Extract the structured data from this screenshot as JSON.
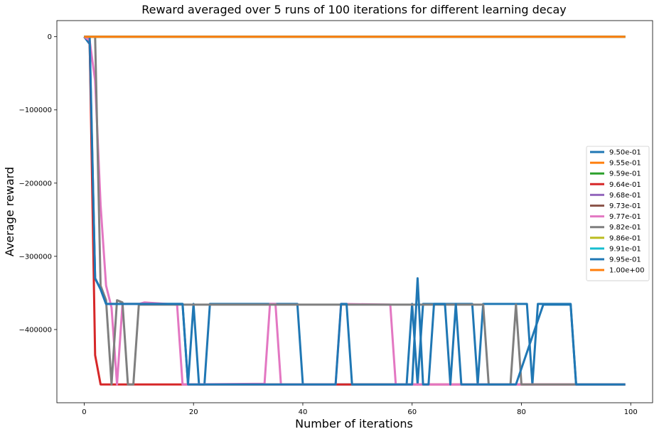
{
  "chart_data": {
    "type": "line",
    "title": "Reward averaged over 5 runs of 100 iterations for different learning decay",
    "xlabel": "Number of iterations",
    "ylabel": "Average reward",
    "xlim": [
      -5,
      104
    ],
    "ylim": [
      -500000,
      22000
    ],
    "xticks": [
      0,
      20,
      40,
      60,
      80,
      100
    ],
    "xtick_labels": [
      "0",
      "20",
      "40",
      "60",
      "80",
      "100"
    ],
    "yticks": [
      0,
      -100000,
      -200000,
      -300000,
      -400000
    ],
    "ytick_labels": [
      "0",
      "−100000",
      "−200000",
      "−300000",
      "−400000"
    ],
    "grid": false,
    "legend_position": "center-right",
    "series": [
      {
        "name": "9.50e-01",
        "color": "#1f77b4",
        "segments": [
          [
            0,
            0
          ],
          [
            1,
            -10000
          ],
          [
            2,
            -330000
          ],
          [
            3,
            -345000
          ],
          [
            4,
            -365000
          ],
          [
            18,
            -365000
          ],
          [
            19,
            -475000
          ],
          [
            20,
            -365000
          ],
          [
            21,
            -475000
          ],
          [
            22,
            -475000
          ],
          [
            23,
            -365000
          ],
          [
            39,
            -365000
          ],
          [
            40,
            -475000
          ],
          [
            59,
            -475000
          ],
          [
            60,
            -365000
          ],
          [
            61,
            -475000
          ],
          [
            62,
            -365000
          ],
          [
            71,
            -365000
          ],
          [
            72,
            -475000
          ],
          [
            73,
            -365000
          ],
          [
            81,
            -365000
          ],
          [
            82,
            -475000
          ],
          [
            83,
            -365000
          ],
          [
            89,
            -365000
          ],
          [
            90,
            -475000
          ],
          [
            99,
            -475000
          ]
        ]
      },
      {
        "name": "9.55e-01",
        "color": "#ff7f0e",
        "segments": [
          [
            0,
            0
          ],
          [
            99,
            0
          ]
        ]
      },
      {
        "name": "9.59e-01",
        "color": "#2ca02c",
        "segments": [
          [
            0,
            0
          ],
          [
            99,
            0
          ]
        ]
      },
      {
        "name": "9.64e-01",
        "color": "#d62728",
        "segments": [
          [
            0,
            0
          ],
          [
            1,
            -5000
          ],
          [
            2,
            -435000
          ],
          [
            3,
            -475000
          ],
          [
            99,
            -475000
          ]
        ]
      },
      {
        "name": "9.68e-01",
        "color": "#9467bd",
        "segments": [
          [
            0,
            0
          ],
          [
            99,
            0
          ]
        ]
      },
      {
        "name": "9.73e-01",
        "color": "#8c564b",
        "segments": [
          [
            0,
            0
          ],
          [
            99,
            0
          ]
        ]
      },
      {
        "name": "9.77e-01",
        "color": "#e377c2",
        "segments": [
          [
            0,
            0
          ],
          [
            1,
            -5000
          ],
          [
            2,
            -60000
          ],
          [
            3,
            -230000
          ],
          [
            4,
            -340000
          ],
          [
            5,
            -370000
          ],
          [
            6,
            -475000
          ],
          [
            7,
            -365000
          ],
          [
            10,
            -365000
          ],
          [
            11,
            -363000
          ],
          [
            17,
            -366000
          ],
          [
            18,
            -475000
          ],
          [
            33,
            -474000
          ],
          [
            34,
            -365000
          ],
          [
            35,
            -365000
          ],
          [
            36,
            -475000
          ],
          [
            46,
            -475000
          ],
          [
            47,
            -365000
          ],
          [
            56,
            -366000
          ],
          [
            57,
            -475000
          ],
          [
            99,
            -475000
          ]
        ]
      },
      {
        "name": "9.82e-01",
        "color": "#7f7f7f",
        "segments": [
          [
            0,
            0
          ],
          [
            1,
            0
          ],
          [
            2,
            0
          ],
          [
            3,
            -340000
          ],
          [
            4,
            -360000
          ],
          [
            5,
            -475000
          ],
          [
            6,
            -360000
          ],
          [
            7,
            -363000
          ],
          [
            8,
            -475000
          ],
          [
            9,
            -475000
          ],
          [
            10,
            -366000
          ],
          [
            72,
            -366000
          ],
          [
            73,
            -366000
          ],
          [
            74,
            -475000
          ],
          [
            78,
            -475000
          ],
          [
            79,
            -366000
          ],
          [
            80,
            -475000
          ],
          [
            99,
            -475000
          ]
        ]
      },
      {
        "name": "9.86e-01",
        "color": "#bcbd22",
        "segments": [
          [
            0,
            0
          ],
          [
            99,
            0
          ]
        ]
      },
      {
        "name": "9.91e-01",
        "color": "#17becf",
        "segments": [
          [
            0,
            0
          ],
          [
            99,
            0
          ]
        ]
      },
      {
        "name": "9.95e-01",
        "color": "#1f77b4",
        "segments": [
          [
            0,
            0
          ],
          [
            1,
            0
          ],
          [
            2,
            -330000
          ],
          [
            3,
            -345000
          ],
          [
            4,
            -365000
          ],
          [
            18,
            -365000
          ],
          [
            19,
            -475000
          ],
          [
            45,
            -475000
          ],
          [
            46,
            -475000
          ],
          [
            47,
            -365000
          ],
          [
            48,
            -365000
          ],
          [
            49,
            -475000
          ],
          [
            59,
            -475000
          ],
          [
            60,
            -475000
          ],
          [
            61,
            -330000
          ],
          [
            62,
            -475000
          ],
          [
            63,
            -475000
          ],
          [
            64,
            -365000
          ],
          [
            65,
            -365000
          ],
          [
            66,
            -365000
          ],
          [
            67,
            -475000
          ],
          [
            68,
            -365000
          ],
          [
            69,
            -475000
          ],
          [
            70,
            -475000
          ],
          [
            77,
            -475000
          ],
          [
            78,
            -475000
          ],
          [
            79,
            -475000
          ],
          [
            84,
            -366000
          ],
          [
            88,
            -366000
          ],
          [
            89,
            -366000
          ],
          [
            90,
            -475000
          ],
          [
            99,
            -475000
          ]
        ]
      },
      {
        "name": "1.00e+00",
        "color": "#ff7f0e",
        "segments": [
          [
            0,
            0
          ],
          [
            99,
            0
          ]
        ]
      }
    ]
  }
}
